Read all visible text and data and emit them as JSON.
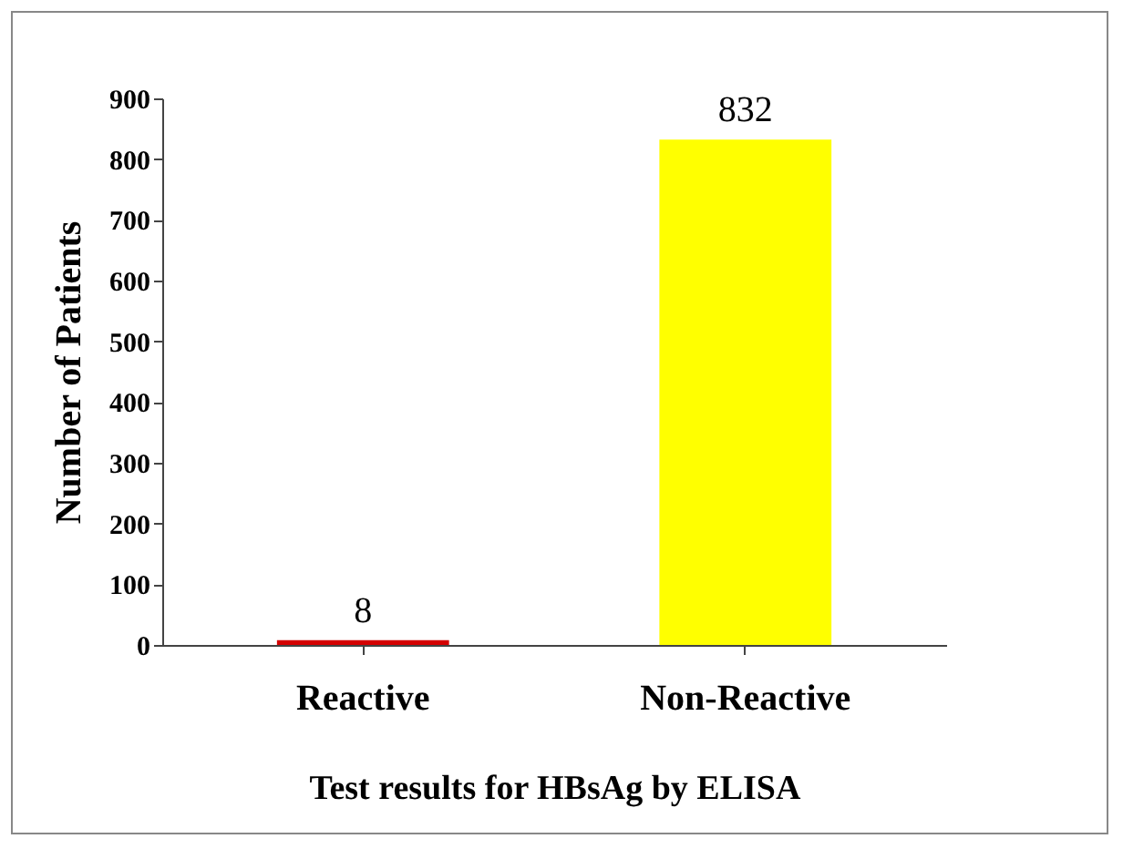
{
  "chart_data": {
    "type": "bar",
    "categories": [
      "Reactive",
      "Non-Reactive"
    ],
    "values": [
      8,
      832
    ],
    "colors": [
      "#d40000",
      "#ffff00"
    ],
    "xlabel": "Test results for HBsAg by ELISA",
    "ylabel": "Number of Patients",
    "ylim": [
      0,
      900
    ],
    "yticks": [
      0,
      100,
      200,
      300,
      400,
      500,
      600,
      700,
      800,
      900
    ],
    "data_labels": true
  }
}
